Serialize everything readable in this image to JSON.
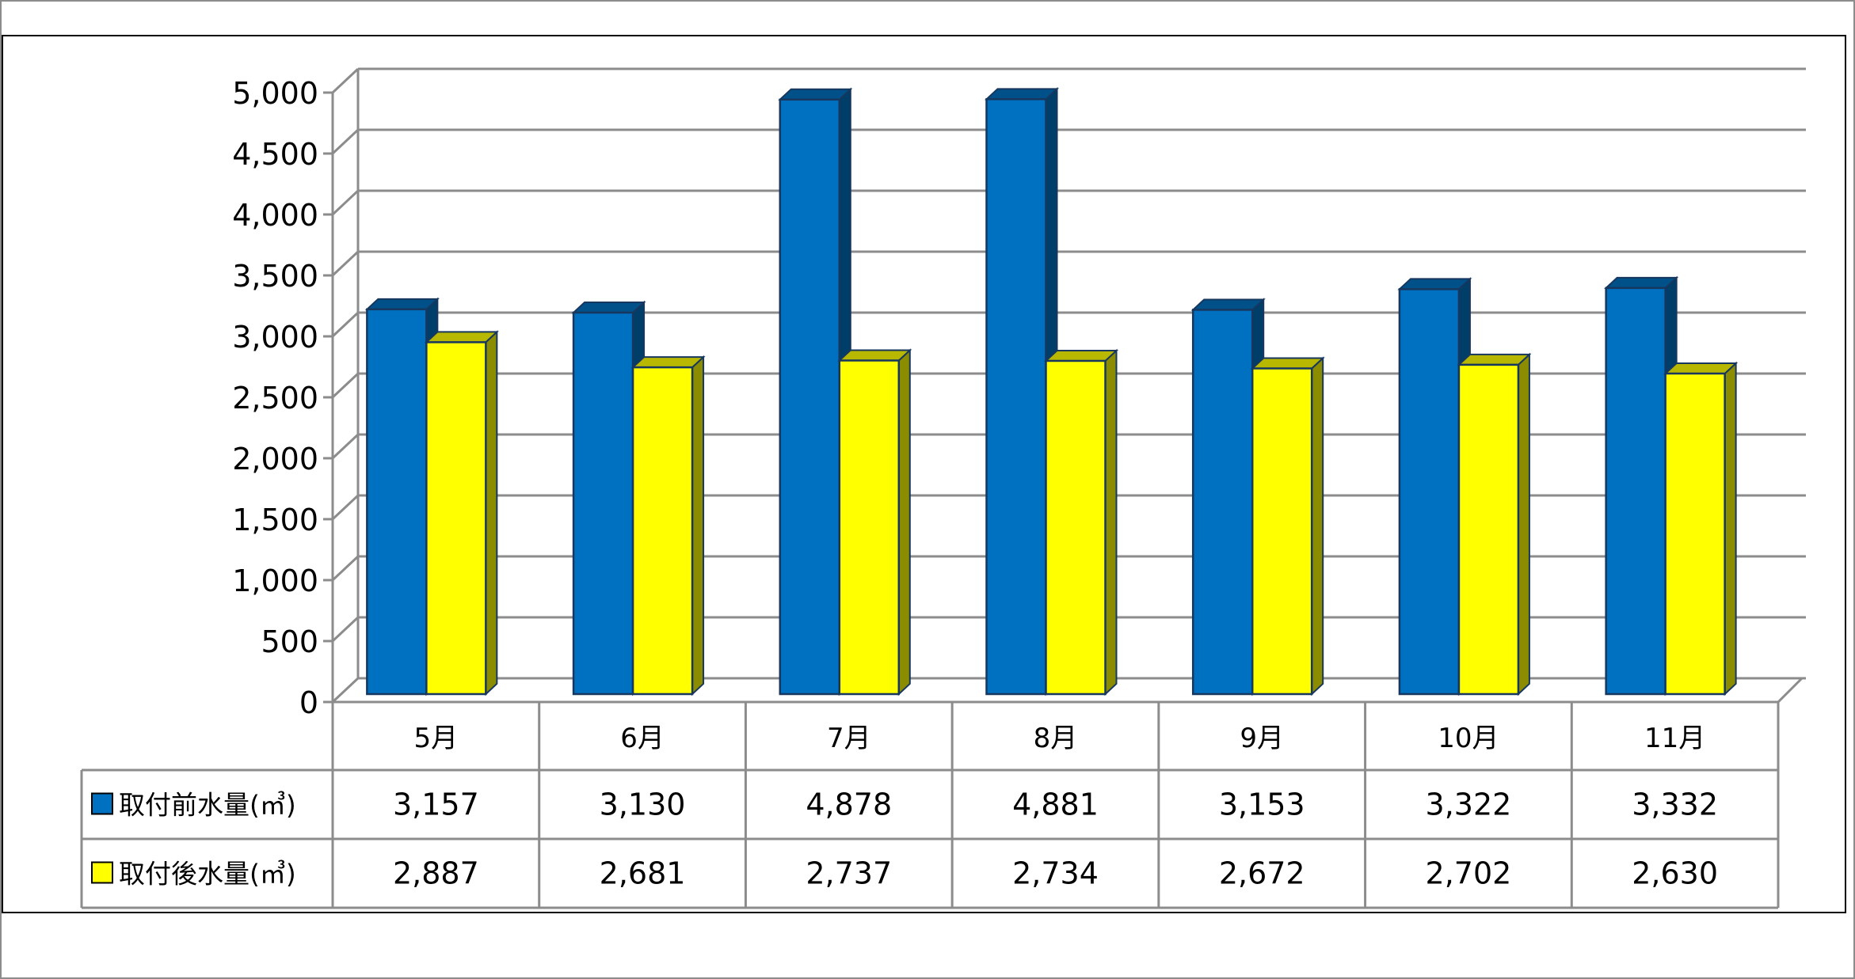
{
  "chart_data": {
    "type": "bar",
    "categories": [
      "5月",
      "6月",
      "7月",
      "8月",
      "9月",
      "10月",
      "11月"
    ],
    "series": [
      {
        "name": "取付前水量(㎥)",
        "values": [
          3157,
          3130,
          4878,
          4881,
          3153,
          3322,
          3332
        ],
        "color": "#0070C0"
      },
      {
        "name": "取付後水量(㎥)",
        "values": [
          2887,
          2681,
          2737,
          2734,
          2672,
          2702,
          2630
        ],
        "color": "#FFFF00"
      }
    ],
    "y_ticks": [
      "0",
      "500",
      "1,000",
      "1,500",
      "2,000",
      "2,500",
      "3,000",
      "3,500",
      "4,000",
      "4,500",
      "5,000"
    ],
    "ylim": [
      0,
      5000
    ],
    "data_table": {
      "rows": [
        [
          "3,157",
          "3,130",
          "4,878",
          "4,881",
          "3,153",
          "3,322",
          "3,332"
        ],
        [
          "2,887",
          "2,681",
          "2,737",
          "2,734",
          "2,672",
          "2,702",
          "2,630"
        ]
      ]
    },
    "grid": true,
    "legend": "data-table"
  }
}
